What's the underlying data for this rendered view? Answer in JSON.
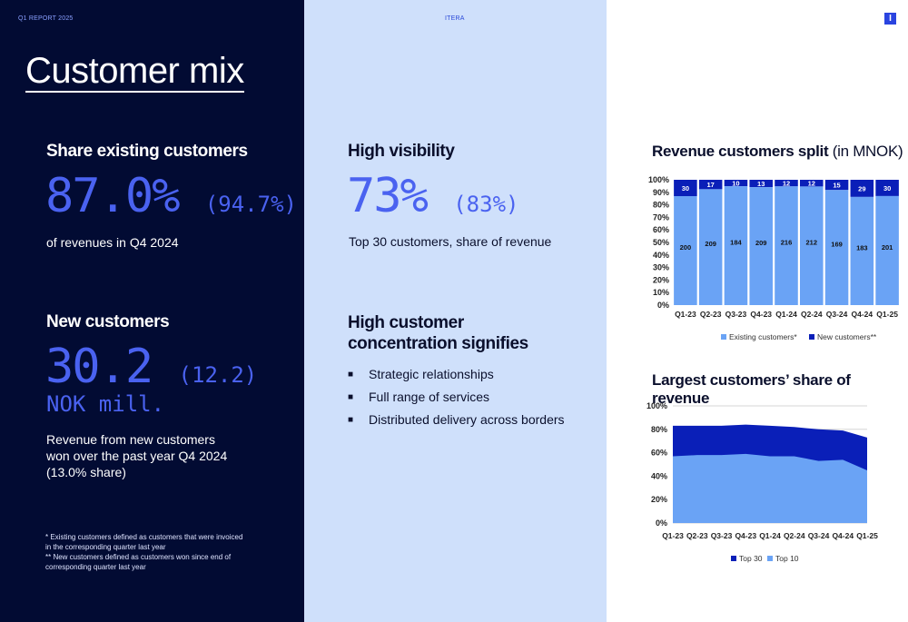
{
  "header": {
    "report": "Q1 REPORT 2025",
    "brand": "ITERA",
    "logo_letter": "I"
  },
  "left": {
    "title": "Customer mix",
    "section1": {
      "heading": "Share existing customers",
      "value": "87.0%",
      "value_prev": "(94.7%)",
      "desc": "of revenues in Q4 2024"
    },
    "section2": {
      "heading": "New customers",
      "value": "30.2",
      "value_prev": "(12.2)",
      "unit": "NOK mill.",
      "desc_lines": [
        "Revenue from new customers",
        "won over the past year Q4 2024",
        "(13.0% share)"
      ]
    },
    "footnotes": [
      "*  Existing customers defined as customers that were invoiced",
      "in the corresponding quarter last year",
      "** New customers defined as customers won since end of",
      "corresponding quarter last year"
    ]
  },
  "middle": {
    "section1": {
      "heading": "High visibility",
      "value": "73%",
      "value_prev": "(83%)",
      "desc": "Top 30 customers, share of revenue"
    },
    "section2": {
      "heading_lines": [
        "High customer",
        "concentration signifies"
      ],
      "bullets": [
        "Strategic relationships",
        "Full range of services",
        "Distributed delivery across borders"
      ]
    }
  },
  "colors": {
    "dark": "#020b33",
    "light_blue": "#cfe0fb",
    "accent": "#4a62f0",
    "bar_existing": "#6aa3f5",
    "bar_new": "#0a1fb8"
  },
  "chart_data": [
    {
      "type": "bar",
      "stacked": "100%",
      "title": "Revenue customers split",
      "title_suffix": "(in MNOK)",
      "categories": [
        "Q1-23",
        "Q2-23",
        "Q3-23",
        "Q4-23",
        "Q1-24",
        "Q2-24",
        "Q3-24",
        "Q4-24",
        "Q1-25"
      ],
      "series": [
        {
          "name": "Existing customers*",
          "values": [
            200,
            209,
            184,
            209,
            216,
            212,
            169,
            183,
            201
          ]
        },
        {
          "name": "New customers**",
          "values": [
            30,
            17,
            10,
            13,
            12,
            12,
            15,
            29,
            30
          ]
        }
      ],
      "yticks": [
        "0%",
        "10%",
        "20%",
        "30%",
        "40%",
        "50%",
        "60%",
        "70%",
        "80%",
        "90%",
        "100%"
      ],
      "ylim": [
        0,
        100
      ],
      "legend": "bottom"
    },
    {
      "type": "area",
      "title": "Largest customers’ share of revenue",
      "categories": [
        "Q1-23",
        "Q2-23",
        "Q3-23",
        "Q4-23",
        "Q1-24",
        "Q2-24",
        "Q3-24",
        "Q4-24",
        "Q1-25"
      ],
      "series": [
        {
          "name": "Top 30",
          "values": [
            83,
            83,
            83,
            84,
            83,
            82,
            80,
            79,
            73
          ]
        },
        {
          "name": "Top 10",
          "values": [
            57,
            58,
            58,
            59,
            57,
            57,
            53,
            54,
            45
          ]
        }
      ],
      "yticks": [
        "0%",
        "20%",
        "40%",
        "60%",
        "80%",
        "100%"
      ],
      "ylim": [
        0,
        100
      ],
      "grid": true,
      "legend": "bottom"
    }
  ]
}
